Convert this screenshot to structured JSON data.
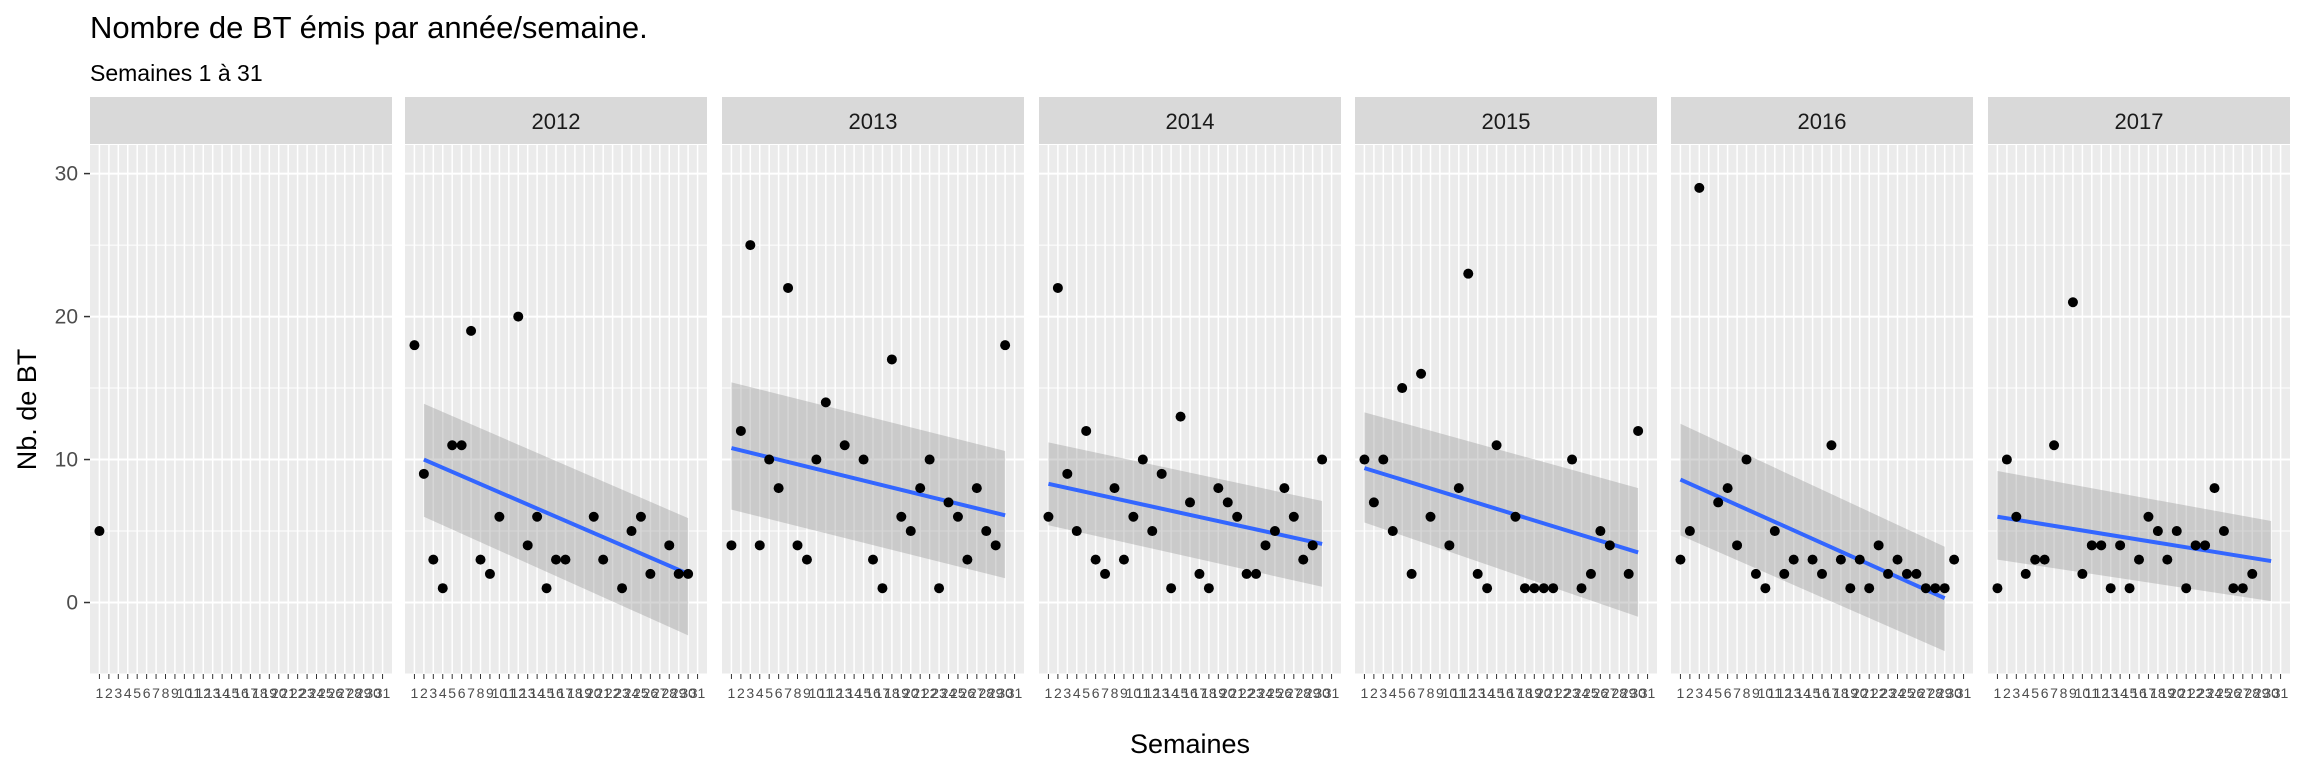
{
  "chart_data": {
    "type": "scatter",
    "title": "Nombre de BT émis par année/semaine.",
    "subtitle": "Semaines 1 à 31",
    "xlabel": "Semaines",
    "ylabel": "Nb. de BT",
    "ylim": [
      -5,
      32
    ],
    "yticks": [
      0,
      10,
      20,
      30
    ],
    "x_categories": [
      "1",
      "2",
      "3",
      "4",
      "5",
      "6",
      "7",
      "8",
      "9",
      "10",
      "11",
      "12",
      "13",
      "14",
      "15",
      "16",
      "17",
      "18",
      "19",
      "20",
      "21",
      "22",
      "23",
      "24",
      "25",
      "26",
      "27",
      "28",
      "29",
      "30",
      "31"
    ],
    "grid": true,
    "smoother": "linear regression with confidence band",
    "colors": {
      "panel_bg": "#ebebeb",
      "strip_bg": "#d9d9d9",
      "grid": "#ffffff",
      "point": "#000000",
      "line": "#3366ff",
      "band": "#999999"
    },
    "facets": [
      {
        "label": "",
        "points": [
          [
            1,
            5
          ]
        ],
        "fit": null
      },
      {
        "label": "2012",
        "points": [
          [
            1,
            18
          ],
          [
            2,
            9
          ],
          [
            3,
            3
          ],
          [
            4,
            1
          ],
          [
            5,
            11
          ],
          [
            6,
            11
          ],
          [
            7,
            19
          ],
          [
            8,
            3
          ],
          [
            9,
            2
          ],
          [
            10,
            6
          ],
          [
            12,
            20
          ],
          [
            13,
            4
          ],
          [
            14,
            6
          ],
          [
            15,
            1
          ],
          [
            16,
            3
          ],
          [
            17,
            3
          ],
          [
            20,
            6
          ],
          [
            21,
            3
          ],
          [
            23,
            1
          ],
          [
            24,
            5
          ],
          [
            25,
            6
          ],
          [
            26,
            2
          ],
          [
            28,
            4
          ],
          [
            29,
            2
          ],
          [
            30,
            2
          ]
        ],
        "fit": {
          "x": [
            2,
            30
          ],
          "y": [
            10,
            2
          ],
          "lower": [
            6,
            -2.3
          ],
          "upper": [
            13.9,
            5.9
          ]
        }
      },
      {
        "label": "2013",
        "points": [
          [
            1,
            4
          ],
          [
            2,
            12
          ],
          [
            3,
            25
          ],
          [
            4,
            4
          ],
          [
            5,
            10
          ],
          [
            6,
            8
          ],
          [
            7,
            22
          ],
          [
            8,
            4
          ],
          [
            9,
            3
          ],
          [
            10,
            10
          ],
          [
            11,
            14
          ],
          [
            13,
            11
          ],
          [
            15,
            10
          ],
          [
            16,
            3
          ],
          [
            17,
            1
          ],
          [
            18,
            17
          ],
          [
            19,
            6
          ],
          [
            20,
            5
          ],
          [
            21,
            8
          ],
          [
            22,
            10
          ],
          [
            23,
            1
          ],
          [
            24,
            7
          ],
          [
            25,
            6
          ],
          [
            26,
            3
          ],
          [
            27,
            8
          ],
          [
            28,
            5
          ],
          [
            29,
            4
          ],
          [
            30,
            18
          ]
        ],
        "fit": {
          "x": [
            1,
            30
          ],
          "y": [
            10.8,
            6.1
          ],
          "lower": [
            6.5,
            1.7
          ],
          "upper": [
            15.4,
            10.6
          ]
        }
      },
      {
        "label": "2014",
        "points": [
          [
            1,
            6
          ],
          [
            2,
            22
          ],
          [
            3,
            9
          ],
          [
            4,
            5
          ],
          [
            5,
            12
          ],
          [
            6,
            3
          ],
          [
            7,
            2
          ],
          [
            8,
            8
          ],
          [
            9,
            3
          ],
          [
            10,
            6
          ],
          [
            11,
            10
          ],
          [
            12,
            5
          ],
          [
            13,
            9
          ],
          [
            14,
            1
          ],
          [
            15,
            13
          ],
          [
            16,
            7
          ],
          [
            17,
            2
          ],
          [
            18,
            1
          ],
          [
            19,
            8
          ],
          [
            20,
            7
          ],
          [
            21,
            6
          ],
          [
            22,
            2
          ],
          [
            23,
            2
          ],
          [
            24,
            4
          ],
          [
            25,
            5
          ],
          [
            26,
            8
          ],
          [
            27,
            6
          ],
          [
            28,
            3
          ],
          [
            29,
            4
          ],
          [
            30,
            10
          ]
        ],
        "fit": {
          "x": [
            1,
            30
          ],
          "y": [
            8.3,
            4.1
          ],
          "lower": [
            5.4,
            1.1
          ],
          "upper": [
            11.2,
            7.1
          ]
        }
      },
      {
        "label": "2015",
        "points": [
          [
            1,
            10
          ],
          [
            2,
            7
          ],
          [
            3,
            10
          ],
          [
            4,
            5
          ],
          [
            5,
            15
          ],
          [
            6,
            2
          ],
          [
            7,
            16
          ],
          [
            8,
            6
          ],
          [
            10,
            4
          ],
          [
            11,
            8
          ],
          [
            12,
            23
          ],
          [
            13,
            2
          ],
          [
            14,
            1
          ],
          [
            15,
            11
          ],
          [
            17,
            6
          ],
          [
            18,
            1
          ],
          [
            19,
            1
          ],
          [
            20,
            1
          ],
          [
            21,
            1
          ],
          [
            23,
            10
          ],
          [
            24,
            1
          ],
          [
            25,
            2
          ],
          [
            26,
            5
          ],
          [
            27,
            4
          ],
          [
            29,
            2
          ],
          [
            30,
            12
          ]
        ],
        "fit": {
          "x": [
            1,
            30
          ],
          "y": [
            9.4,
            3.5
          ],
          "lower": [
            5.6,
            -1.0
          ],
          "upper": [
            13.3,
            8.0
          ]
        }
      },
      {
        "label": "2016",
        "points": [
          [
            1,
            3
          ],
          [
            3,
            29
          ],
          [
            2,
            5
          ],
          [
            5,
            7
          ],
          [
            6,
            8
          ],
          [
            7,
            4
          ],
          [
            8,
            10
          ],
          [
            9,
            2
          ],
          [
            10,
            1
          ],
          [
            11,
            5
          ],
          [
            12,
            2
          ],
          [
            13,
            3
          ],
          [
            15,
            3
          ],
          [
            16,
            2
          ],
          [
            17,
            11
          ],
          [
            18,
            3
          ],
          [
            19,
            1
          ],
          [
            20,
            3
          ],
          [
            21,
            1
          ],
          [
            22,
            4
          ],
          [
            23,
            2
          ],
          [
            24,
            3
          ],
          [
            25,
            2
          ],
          [
            26,
            2
          ],
          [
            27,
            1
          ],
          [
            28,
            1
          ],
          [
            29,
            1
          ],
          [
            30,
            3
          ]
        ],
        "fit": {
          "x": [
            1,
            29
          ],
          "y": [
            8.6,
            0.3
          ],
          "lower": [
            4.7,
            -3.4
          ],
          "upper": [
            12.5,
            3.9
          ]
        }
      },
      {
        "label": "2017",
        "points": [
          [
            1,
            1
          ],
          [
            2,
            10
          ],
          [
            3,
            6
          ],
          [
            4,
            2
          ],
          [
            5,
            3
          ],
          [
            6,
            3
          ],
          [
            7,
            11
          ],
          [
            9,
            21
          ],
          [
            10,
            2
          ],
          [
            11,
            4
          ],
          [
            12,
            4
          ],
          [
            13,
            1
          ],
          [
            14,
            4
          ],
          [
            15,
            1
          ],
          [
            16,
            3
          ],
          [
            17,
            6
          ],
          [
            18,
            5
          ],
          [
            19,
            3
          ],
          [
            20,
            5
          ],
          [
            21,
            1
          ],
          [
            22,
            4
          ],
          [
            23,
            4
          ],
          [
            24,
            8
          ],
          [
            25,
            5
          ],
          [
            26,
            1
          ],
          [
            27,
            1
          ],
          [
            28,
            2
          ]
        ],
        "fit": {
          "x": [
            1,
            30
          ],
          "y": [
            6.0,
            2.9
          ],
          "lower": [
            3.0,
            0.1
          ],
          "upper": [
            9.2,
            5.7
          ]
        }
      }
    ]
  }
}
